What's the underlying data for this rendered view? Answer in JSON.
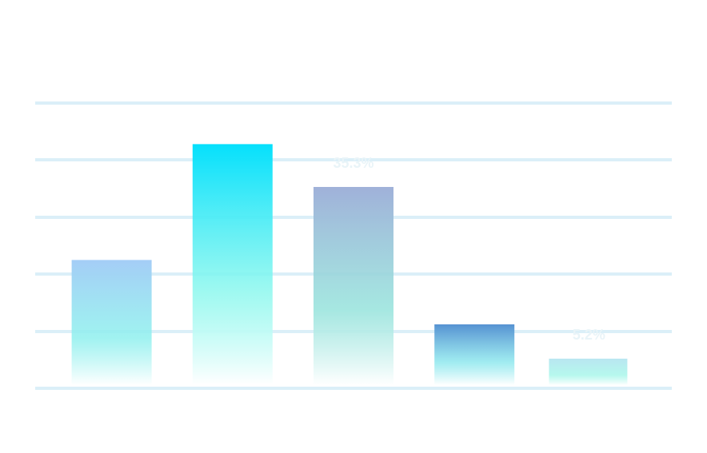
{
  "chart_data": {
    "type": "bar",
    "categories": [
      "",
      "",
      "",
      "",
      ""
    ],
    "values": [
      22.5,
      42.8,
      35.3,
      11.2,
      5.2
    ],
    "data_labels": [
      "",
      "",
      "35.3%",
      "",
      "5.2%"
    ],
    "ylim": [
      0,
      50
    ],
    "ytick_step": 10,
    "grid": true,
    "legend": "none",
    "title": "",
    "xlabel": "",
    "ylabel": ""
  },
  "colors": {
    "gridline": "#dbeff8",
    "data_label": "#e9f4f8",
    "bar_gradients": [
      [
        "#a4cdf6",
        "#ffffff"
      ],
      [
        "#05e0fc",
        "#ffffff"
      ],
      [
        "#a0b1d9",
        "#ffffff"
      ],
      [
        "#5692d2",
        "#ffffff"
      ],
      [
        "#b9e6f1",
        "#ffffff"
      ]
    ],
    "bar_mid": [
      "#8ff0ee",
      "#8ff8ee",
      "#96e3dc",
      "#8fe8ee",
      "#a9f6ea"
    ]
  }
}
